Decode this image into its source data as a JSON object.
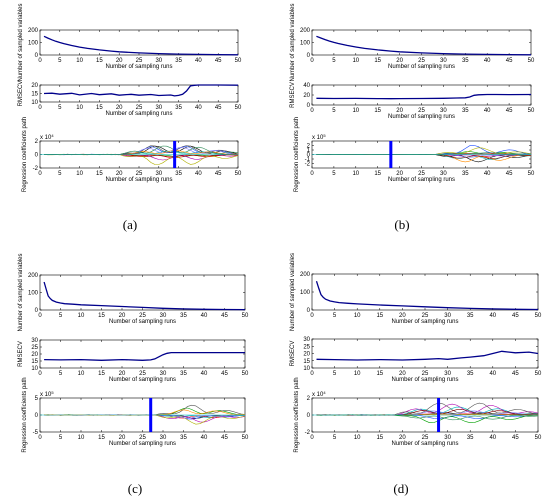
{
  "figure": {
    "captions": [
      "(a)",
      "(b)",
      "(c)",
      "(d)"
    ]
  },
  "colors": {
    "main_line": "#00008b",
    "marker_line": "#0000ff",
    "axes": "#000000",
    "path_colors": [
      "#000000",
      "#1f4fff",
      "#00a000",
      "#ff0000",
      "#00bcbc",
      "#b000b0",
      "#b0b000",
      "#555555",
      "#7f7fff",
      "#ff8c00",
      "#800000",
      "#2e8b57"
    ]
  },
  "chart_data": [
    {
      "panel": "(a)",
      "type": "line",
      "subplots": [
        {
          "ylabel": "Number of sampled variables",
          "xlabel": "Number of sampling runs",
          "xlim": [
            0,
            50
          ],
          "ylim": [
            0,
            200
          ],
          "xticks": [
            0,
            5,
            10,
            15,
            20,
            25,
            30,
            35,
            40,
            45,
            50
          ],
          "yticks": [
            0,
            100,
            200
          ],
          "x": [
            1,
            2,
            3,
            4,
            5,
            6,
            8,
            10,
            12,
            15,
            18,
            20,
            25,
            30,
            35,
            40,
            45,
            50
          ],
          "y": [
            150,
            135,
            122,
            110,
            100,
            91,
            76,
            63,
            53,
            41,
            31,
            26,
            17,
            11,
            7,
            5,
            3,
            2
          ]
        },
        {
          "ylabel": "RMSECV",
          "xlabel": "Number of sampling runs",
          "xlim": [
            0,
            50
          ],
          "ylim": [
            10,
            20
          ],
          "xticks": [
            0,
            5,
            10,
            15,
            20,
            25,
            30,
            35,
            40,
            45,
            50
          ],
          "yticks": [
            10,
            15,
            20
          ],
          "x": [
            1,
            3,
            5,
            8,
            10,
            13,
            15,
            18,
            20,
            23,
            25,
            28,
            30,
            33,
            34,
            35,
            36,
            37,
            38,
            39,
            40,
            45,
            50
          ],
          "y": [
            15,
            15.2,
            14.6,
            15.1,
            14.2,
            15,
            14.3,
            14.8,
            14,
            14.5,
            14,
            14.4,
            13.8,
            14.1,
            13.6,
            13.9,
            14.5,
            16.5,
            19.5,
            19.8,
            20,
            20,
            19.9
          ]
        },
        {
          "ylabel": "Regression coefficients path",
          "xlabel": "Number of sampling runs",
          "exponent_label": "x 10^4",
          "xlim": [
            0,
            50
          ],
          "ylim": [
            -2,
            2
          ],
          "xticks": [
            0,
            5,
            10,
            15,
            20,
            25,
            30,
            35,
            40,
            45,
            50
          ],
          "yticks": [
            -2,
            0,
            2
          ],
          "optimal_run": 34,
          "series_count": 12,
          "spread_start": 20,
          "amplitude": 1.6
        }
      ]
    },
    {
      "panel": "(b)",
      "type": "line",
      "subplots": [
        {
          "ylabel": "Number of sampled variables",
          "xlabel": "Number of sampling runs",
          "xlim": [
            0,
            50
          ],
          "ylim": [
            0,
            200
          ],
          "xticks": [
            0,
            5,
            10,
            15,
            20,
            25,
            30,
            35,
            40,
            45,
            50
          ],
          "yticks": [
            0,
            100,
            200
          ],
          "x": [
            1,
            2,
            3,
            4,
            5,
            6,
            8,
            10,
            12,
            15,
            18,
            20,
            25,
            30,
            35,
            40,
            45,
            50
          ],
          "y": [
            150,
            136,
            123,
            111,
            101,
            92,
            77,
            64,
            53,
            41,
            31,
            26,
            17,
            11,
            7,
            5,
            3,
            2
          ]
        },
        {
          "ylabel": "RMSECV",
          "xlabel": "Number of sampling runs",
          "xlim": [
            0,
            50
          ],
          "ylim": [
            0,
            40
          ],
          "xticks": [
            0,
            5,
            10,
            15,
            20,
            25,
            30,
            35,
            40,
            45,
            50
          ],
          "yticks": [
            0,
            20,
            40
          ],
          "x": [
            1,
            5,
            10,
            15,
            18,
            20,
            25,
            30,
            33,
            35,
            36,
            37,
            38,
            40,
            42,
            45,
            50
          ],
          "y": [
            13.5,
            13,
            13.2,
            12.8,
            12.6,
            12.8,
            13,
            13.5,
            14,
            14.5,
            16,
            19.5,
            20.5,
            21,
            21,
            20.8,
            21
          ]
        },
        {
          "ylabel": "Regression coefficients path",
          "xlabel": "Number of sampling runs",
          "exponent_label": "x 10^5",
          "xlim": [
            0,
            50
          ],
          "ylim": [
            -3,
            3
          ],
          "xticks": [
            0,
            5,
            10,
            15,
            20,
            25,
            30,
            35,
            40,
            45,
            50
          ],
          "yticks": [
            -2,
            -1,
            0,
            1,
            2
          ],
          "optimal_run": 18,
          "series_count": 12,
          "spread_start": 28,
          "amplitude": 2.2
        }
      ]
    },
    {
      "panel": "(c)",
      "type": "line",
      "subplots": [
        {
          "ylabel": "Number of sampled variables",
          "xlabel": "Number of sampling runs",
          "xlim": [
            0,
            50
          ],
          "ylim": [
            0,
            200
          ],
          "xticks": [
            0,
            5,
            10,
            15,
            20,
            25,
            30,
            35,
            40,
            45,
            50
          ],
          "yticks": [
            0,
            100,
            200
          ],
          "x": [
            1,
            1.5,
            2,
            2.5,
            3,
            4,
            5,
            6,
            8,
            10,
            15,
            20,
            25,
            30,
            35,
            40,
            45,
            50
          ],
          "y": [
            160,
            120,
            80,
            65,
            55,
            45,
            40,
            36,
            33,
            30,
            25,
            20,
            15,
            10,
            6,
            4,
            3,
            2
          ]
        },
        {
          "ylabel": "RMSECV",
          "xlabel": "Number of sampling runs",
          "xlim": [
            0,
            50
          ],
          "ylim": [
            10,
            30
          ],
          "xticks": [
            0,
            5,
            10,
            15,
            20,
            25,
            30,
            35,
            40,
            45,
            50
          ],
          "yticks": [
            10,
            15,
            20,
            25,
            30
          ],
          "x": [
            1,
            5,
            10,
            15,
            20,
            25,
            27,
            28,
            29,
            30,
            31,
            32,
            35,
            40,
            45,
            50
          ],
          "y": [
            16,
            15.8,
            16,
            15.5,
            16,
            15.5,
            15.8,
            16.5,
            18,
            19.5,
            20.5,
            21,
            21,
            21,
            21,
            21
          ]
        },
        {
          "ylabel": "Regression coefficients path",
          "xlabel": "Number of sampling runs",
          "exponent_label": "x 10^5",
          "xlim": [
            0,
            50
          ],
          "ylim": [
            -5,
            5
          ],
          "xticks": [
            0,
            5,
            10,
            15,
            20,
            25,
            30,
            35,
            40,
            45,
            50
          ],
          "yticks": [
            -5,
            0,
            5
          ],
          "optimal_run": 27,
          "series_count": 10,
          "spread_start": 28,
          "amplitude": 3.5
        }
      ]
    },
    {
      "panel": "(d)",
      "type": "line",
      "subplots": [
        {
          "ylabel": "Number of sampled variables",
          "xlabel": "Number of sampling runs",
          "xlim": [
            0,
            50
          ],
          "ylim": [
            0,
            200
          ],
          "xticks": [
            0,
            5,
            10,
            15,
            20,
            25,
            30,
            35,
            40,
            45,
            50
          ],
          "yticks": [
            0,
            100,
            200
          ],
          "x": [
            1,
            1.5,
            2,
            2.5,
            3,
            4,
            5,
            6,
            8,
            10,
            15,
            20,
            25,
            30,
            35,
            40,
            45,
            50
          ],
          "y": [
            160,
            120,
            85,
            70,
            60,
            50,
            45,
            41,
            37,
            34,
            28,
            23,
            18,
            13,
            9,
            6,
            4,
            3
          ]
        },
        {
          "ylabel": "RMSECV",
          "xlabel": "Number of sampling runs",
          "xlim": [
            0,
            50
          ],
          "ylim": [
            10,
            30
          ],
          "xticks": [
            0,
            5,
            10,
            15,
            20,
            25,
            30,
            35,
            40,
            45,
            50
          ],
          "yticks": [
            10,
            15,
            20,
            25,
            30
          ],
          "x": [
            1,
            5,
            10,
            15,
            20,
            25,
            28,
            30,
            33,
            35,
            38,
            40,
            42,
            45,
            48,
            50
          ],
          "y": [
            16,
            15.8,
            15.5,
            15.8,
            15.5,
            16,
            16.5,
            16,
            17,
            17.5,
            18.5,
            20,
            21.5,
            20.5,
            21,
            20
          ]
        },
        {
          "ylabel": "Regression coefficients path",
          "xlabel": "Number of sampling runs",
          "exponent_label": "x 10^4",
          "xlim": [
            0,
            50
          ],
          "ylim": [
            -2,
            2
          ],
          "xticks": [
            0,
            5,
            10,
            15,
            20,
            25,
            30,
            35,
            40,
            45,
            50
          ],
          "yticks": [
            -2,
            0,
            2
          ],
          "optimal_run": 28,
          "series_count": 12,
          "spread_start": 18,
          "amplitude": 1.5
        }
      ]
    }
  ]
}
